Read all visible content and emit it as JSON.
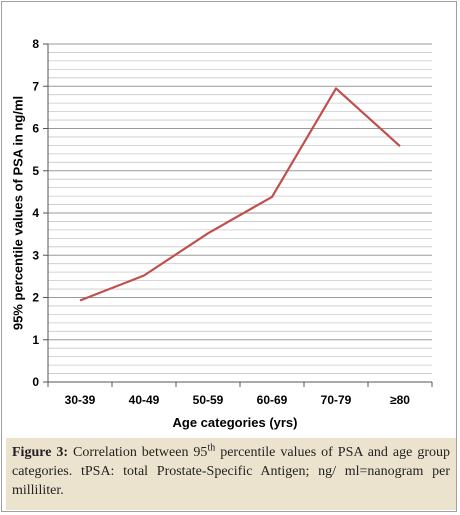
{
  "chart_data": {
    "type": "line",
    "categories": [
      "30-39",
      "40-49",
      "50-59",
      "60-69",
      "70-79",
      "≥80"
    ],
    "series": [
      {
        "values": [
          1.93,
          2.52,
          3.52,
          4.38,
          6.95,
          5.58
        ],
        "color": "#c0504d"
      }
    ],
    "xlabel": "Age categories (yrs)",
    "ylabel": "95% percentile values of PSA in ng/ml",
    "ylim": [
      0,
      8
    ],
    "yticks": [
      0,
      1,
      2,
      3,
      4,
      5,
      6,
      7,
      8
    ],
    "grid": true,
    "legend": "none"
  },
  "caption": {
    "label": "Figure 3:",
    "text_before": " Correlation between 95",
    "superscript": "th",
    "text_after": " percentile values of PSA and age group categories. tPSA: total Prostate-Specific Antigen; ng/ ml=nanogram per milliliter."
  }
}
